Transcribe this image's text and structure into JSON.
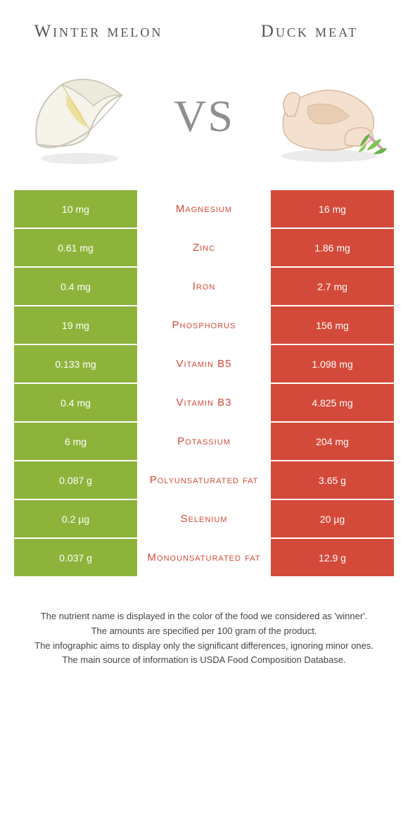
{
  "colors": {
    "left_food": "#8eb33b",
    "right_food": "#d44a3a",
    "title_text": "#555555",
    "vs_text": "#8f8f8f",
    "footer_text": "#444444",
    "background": "#ffffff"
  },
  "left_food": {
    "title": "Winter melon"
  },
  "right_food": {
    "title": "Duck meat"
  },
  "vs_label": "VS",
  "nutrients": [
    {
      "name": "Magnesium",
      "left": "10 mg",
      "right": "16 mg",
      "winner": "right"
    },
    {
      "name": "Zinc",
      "left": "0.61 mg",
      "right": "1.86 mg",
      "winner": "right"
    },
    {
      "name": "Iron",
      "left": "0.4 mg",
      "right": "2.7 mg",
      "winner": "right"
    },
    {
      "name": "Phosphorus",
      "left": "19 mg",
      "right": "156 mg",
      "winner": "right"
    },
    {
      "name": "Vitamin B5",
      "left": "0.133 mg",
      "right": "1.098 mg",
      "winner": "right"
    },
    {
      "name": "Vitamin B3",
      "left": "0.4 mg",
      "right": "4.825 mg",
      "winner": "right"
    },
    {
      "name": "Potassium",
      "left": "6 mg",
      "right": "204 mg",
      "winner": "right"
    },
    {
      "name": "Polyunsaturated fat",
      "left": "0.087 g",
      "right": "3.65 g",
      "winner": "right"
    },
    {
      "name": "Selenium",
      "left": "0.2 µg",
      "right": "20 µg",
      "winner": "right"
    },
    {
      "name": "Monounsaturated fat",
      "left": "0.037 g",
      "right": "12.9 g",
      "winner": "right"
    }
  ],
  "footer": {
    "line1": "The nutrient name is displayed in the color of the food we considered as 'winner'.",
    "line2": "The amounts are specified per 100 gram of the product.",
    "line3": "The infographic aims to display only the significant differences, ignoring minor ones.",
    "line4": "The main source of information is USDA Food Composition Database."
  }
}
